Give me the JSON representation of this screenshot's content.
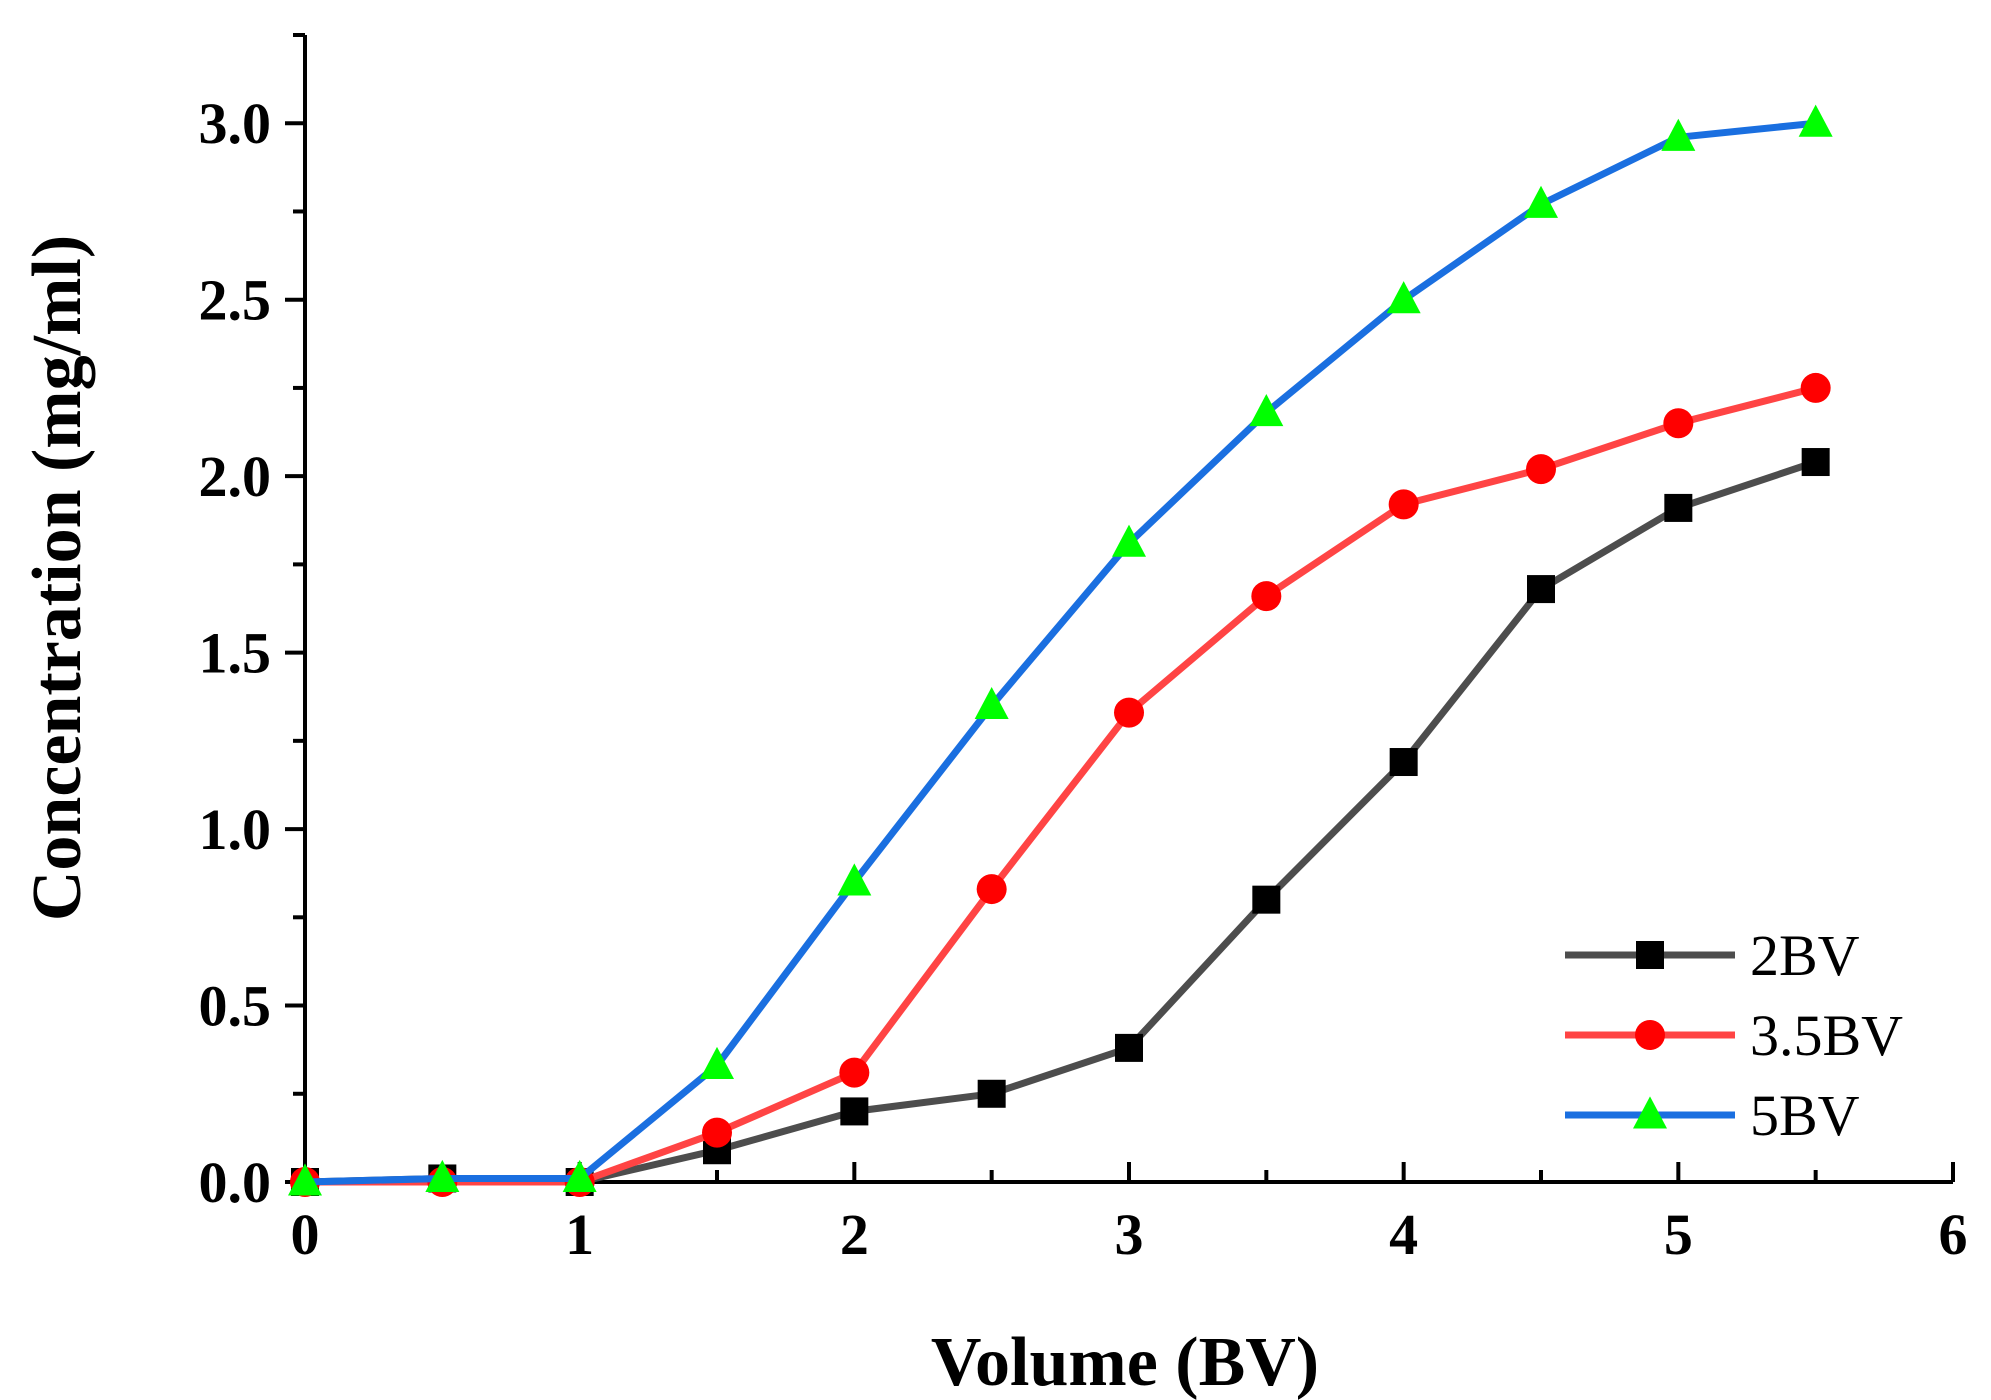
{
  "chart_data": {
    "type": "line",
    "title": "",
    "xlabel": "Volume (BV)",
    "ylabel": "Concentration (mg/ml)",
    "xlim": [
      0,
      6
    ],
    "ylim": [
      0,
      3.25
    ],
    "x_ticks": [
      "0",
      "1",
      "2",
      "3",
      "4",
      "5",
      "6"
    ],
    "y_ticks": [
      "0.0",
      "0.5",
      "1.0",
      "1.5",
      "2.0",
      "2.5",
      "3.0"
    ],
    "grid": false,
    "legend_position": "bottom-right",
    "x": [
      0,
      0.5,
      1,
      1.5,
      2,
      2.5,
      3,
      3.5,
      4,
      4.5,
      5,
      5.5
    ],
    "series": [
      {
        "name": "2BV",
        "line_color": "#4d4d4d",
        "marker": "square",
        "marker_color": "#000000",
        "values": [
          0.0,
          0.01,
          0.0,
          0.09,
          0.2,
          0.25,
          0.38,
          0.8,
          1.19,
          1.68,
          1.91,
          2.04
        ]
      },
      {
        "name": "3.5BV",
        "line_color": "#ff4444",
        "marker": "circle",
        "marker_color": "#ff0000",
        "values": [
          0.0,
          0.0,
          0.0,
          0.14,
          0.31,
          0.83,
          1.33,
          1.66,
          1.92,
          2.02,
          2.15,
          2.25
        ]
      },
      {
        "name": "5BV",
        "line_color": "#1a6fe0",
        "marker": "triangle",
        "marker_color": "#00ff00",
        "values": [
          0.0,
          0.01,
          0.01,
          0.33,
          0.85,
          1.35,
          1.81,
          2.18,
          2.5,
          2.77,
          2.96,
          3.0
        ]
      }
    ]
  }
}
